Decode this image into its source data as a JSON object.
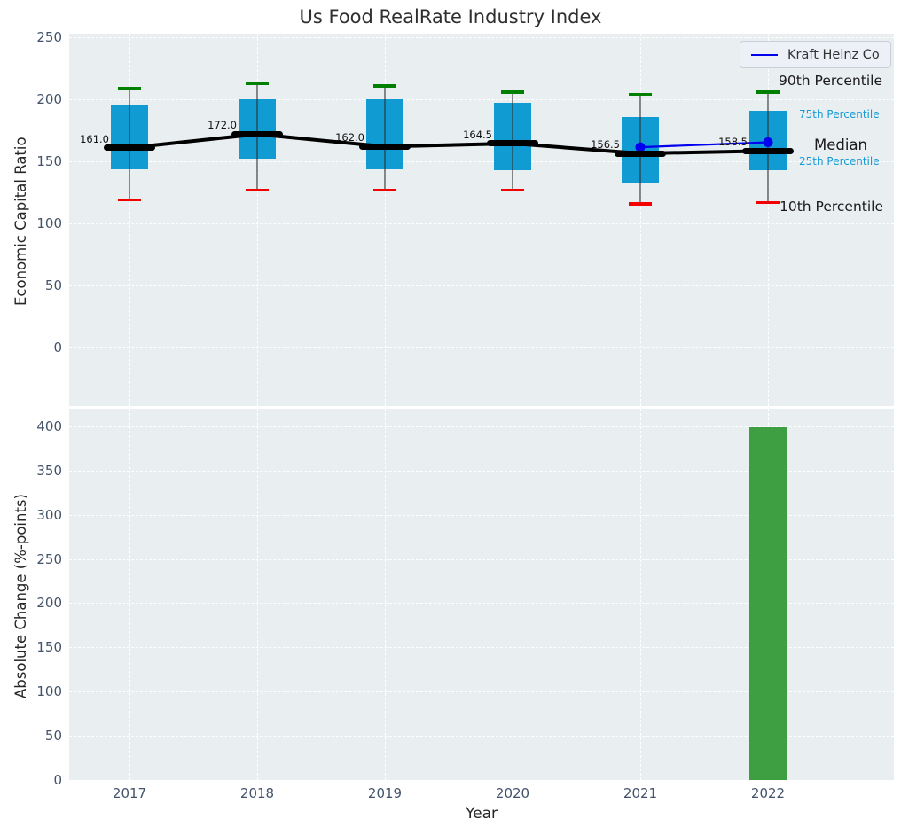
{
  "title": "Us Food RealRate Industry Index",
  "legend": {
    "label": "Kraft Heinz Co"
  },
  "annotations": [
    {
      "text": "90th Percentile",
      "color": "#1a1a1a"
    },
    {
      "text": "75th Percentile",
      "color": "#169bd5"
    },
    {
      "text": "Median",
      "color": "#1a1a1a"
    },
    {
      "text": "25th Percentile",
      "color": "#169bd5"
    },
    {
      "text": "10th Percentile",
      "color": "#1a1a1a"
    }
  ],
  "colors": {
    "axes_background": "#e9eef0",
    "grid": "#ffffff",
    "box_fill": "#109bd2",
    "whisker_cap_top": "#008000",
    "whisker_cap_bottom": "#f50000",
    "median": "#000000",
    "kraft_line": "#0000ee",
    "bar_fill": "#3d9f42",
    "tick_label": "#43536a"
  },
  "chart_data": [
    {
      "type": "box",
      "title": "Us Food RealRate Industry Index",
      "ylabel": "Economic Capital Ratio",
      "categories": [
        "2017",
        "2018",
        "2019",
        "2020",
        "2021",
        "2022"
      ],
      "percentile_90": [
        209,
        213,
        211,
        206,
        204,
        206
      ],
      "percentile_75": [
        195,
        200,
        200,
        197,
        186,
        191
      ],
      "median": [
        161.0,
        172.0,
        162.0,
        164.5,
        156.5,
        158.5
      ],
      "percentile_25": [
        144,
        152,
        144,
        143,
        133,
        143
      ],
      "percentile_10": [
        119,
        127,
        127,
        127,
        116,
        117
      ],
      "median_labels": [
        "161.0",
        "172.0",
        "162.0",
        "164.5",
        "156.5",
        "158.5"
      ],
      "series": [
        {
          "name": "Kraft Heinz Co",
          "x": [
            "2021",
            "2022"
          ],
          "values": [
            161.5,
            165.5
          ],
          "color": "#0000ee"
        }
      ],
      "ylim": [
        -47,
        253
      ],
      "yticks": [
        0,
        50,
        100,
        150,
        200,
        250
      ],
      "grid": true,
      "legend_position": "upper right"
    },
    {
      "type": "bar",
      "ylabel": "Absolute Change (%-points)",
      "xlabel": "Year",
      "categories": [
        "2017",
        "2018",
        "2019",
        "2020",
        "2021",
        "2022"
      ],
      "values": [
        0,
        0,
        0,
        0,
        0,
        399
      ],
      "ylim": [
        0,
        420
      ],
      "yticks": [
        0,
        50,
        100,
        150,
        200,
        250,
        300,
        350,
        400
      ],
      "grid": true
    }
  ]
}
